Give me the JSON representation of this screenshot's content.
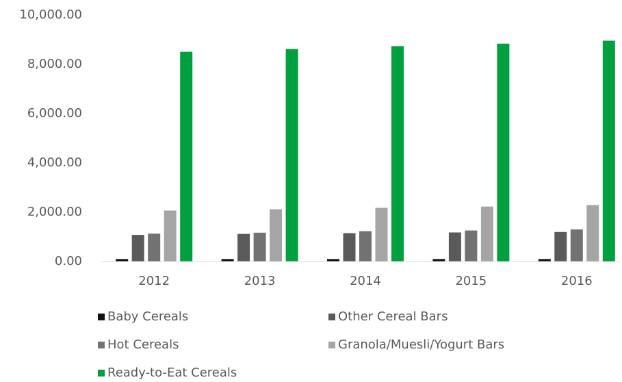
{
  "chart_data": {
    "type": "bar",
    "categories": [
      "2012",
      "2013",
      "2014",
      "2015",
      "2016"
    ],
    "series": [
      {
        "name": "Baby Cereals",
        "color": "#111111",
        "values": [
          100,
          100,
          100,
          100,
          100
        ]
      },
      {
        "name": "Other Cereal Bars",
        "color": "#5a5a5a",
        "values": [
          1080,
          1120,
          1150,
          1180,
          1200
        ]
      },
      {
        "name": "Hot Cereals",
        "color": "#727272",
        "values": [
          1130,
          1170,
          1230,
          1260,
          1300
        ]
      },
      {
        "name": "Granola/Muesli/Yogurt Bars",
        "color": "#a5a5a5",
        "values": [
          2070,
          2120,
          2180,
          2230,
          2290
        ]
      },
      {
        "name": "Ready-to-Eat Cereals",
        "color": "#00a040",
        "values": [
          8510,
          8620,
          8740,
          8840,
          8960
        ]
      }
    ],
    "ylim": [
      0,
      10000
    ],
    "yticks": [
      {
        "value": 0,
        "label": "0.00"
      },
      {
        "value": 2000,
        "label": "2,000.00"
      },
      {
        "value": 4000,
        "label": "4,000.00"
      },
      {
        "value": 6000,
        "label": "6,000.00"
      },
      {
        "value": 8000,
        "label": "8,000.00"
      },
      {
        "value": 10000,
        "label": "10,000.00"
      }
    ],
    "grid": false,
    "legend": "bottom"
  }
}
